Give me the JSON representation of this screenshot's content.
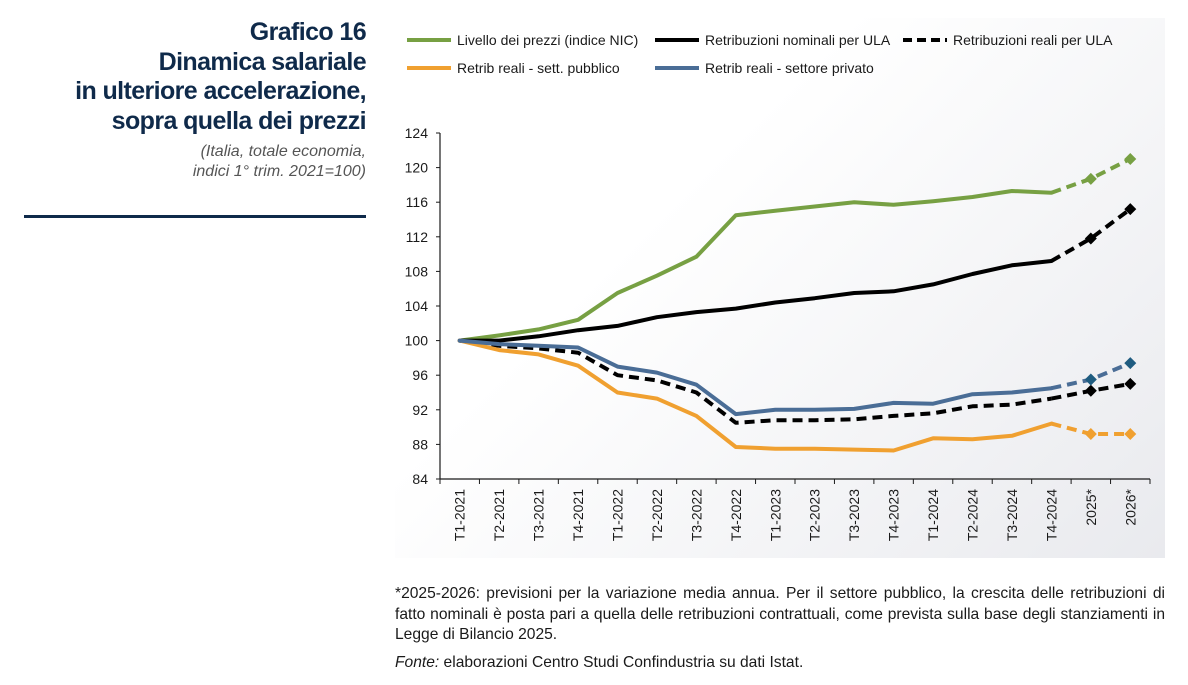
{
  "side": {
    "title_lines": [
      "Grafico 16",
      "Dinamica salariale",
      "in ulteriore accelerazione,",
      "sopra quella dei prezzi"
    ],
    "subtitle_lines": [
      "(Italia, totale economia,",
      "indici 1° trim. 2021=100)"
    ]
  },
  "footnote": "*2025-2026: previsioni per la variazione media annua. Per il settore pubblico, la crescita delle retribuzioni di fatto nominali è posta pari a quella delle retribuzioni contrattuali, come prevista sulla base degli stanziamenti in Legge di Bilancio 2025.",
  "source": {
    "label": "Fonte:",
    "text": " elaborazioni Centro Studi Confindustria su dati Istat."
  },
  "chart_data": {
    "type": "line",
    "categories": [
      "T1-2021",
      "T2-2021",
      "T3-2021",
      "T4-2021",
      "T1-2022",
      "T2-2022",
      "T3-2022",
      "T4-2022",
      "T1-2023",
      "T2-2023",
      "T3-2023",
      "T4-2023",
      "T1-2024",
      "T2-2024",
      "T3-2024",
      "T4-2024",
      "2025*",
      "2026*"
    ],
    "ylim": [
      84,
      124
    ],
    "yticks": [
      84,
      88,
      92,
      96,
      100,
      104,
      108,
      112,
      116,
      120,
      124
    ],
    "forecast_from_index": 15,
    "grid": false,
    "legend_position": "top",
    "series": [
      {
        "name": "Livello dei prezzi (indice NIC)",
        "color": "#77a043",
        "dash": "solid",
        "marker_color": "#77a043",
        "values": [
          100.0,
          100.6,
          101.3,
          102.4,
          105.5,
          107.5,
          109.7,
          114.5,
          115.0,
          115.5,
          116.0,
          115.7,
          116.1,
          116.6,
          117.3,
          117.1,
          118.7,
          121.0
        ]
      },
      {
        "name": "Retribuzioni nominali per ULA",
        "color": "#000000",
        "dash": "solid",
        "marker_color": "#000000",
        "values": [
          100.0,
          100.0,
          100.5,
          101.2,
          101.7,
          102.7,
          103.3,
          103.7,
          104.4,
          104.9,
          105.5,
          105.7,
          106.5,
          107.7,
          108.7,
          109.2,
          111.8,
          115.2
        ]
      },
      {
        "name": "Retribuzioni reali per ULA",
        "color": "#000000",
        "dash": "dashed",
        "marker_color": "#000000",
        "values": [
          100.0,
          99.4,
          99.1,
          98.6,
          96.0,
          95.4,
          94.0,
          90.5,
          90.8,
          90.8,
          90.9,
          91.3,
          91.6,
          92.4,
          92.6,
          93.3,
          94.2,
          95.0
        ]
      },
      {
        "name": "Retrib reali - sett. pubblico",
        "color": "#f0a030",
        "dash": "solid",
        "marker_color": "#f0a030",
        "values": [
          100.0,
          98.9,
          98.4,
          97.1,
          94.0,
          93.3,
          91.3,
          87.7,
          87.5,
          87.5,
          87.4,
          87.3,
          88.7,
          88.6,
          89.0,
          90.4,
          89.2,
          89.2
        ]
      },
      {
        "name": "Retrib reali - settore privato",
        "color": "#4a6d96",
        "dash": "solid",
        "marker_color": "#1f5c80",
        "values": [
          100.0,
          99.6,
          99.4,
          99.2,
          97.0,
          96.3,
          94.9,
          91.5,
          92.0,
          92.0,
          92.1,
          92.8,
          92.7,
          93.8,
          94.0,
          94.5,
          95.5,
          97.4
        ]
      }
    ]
  }
}
